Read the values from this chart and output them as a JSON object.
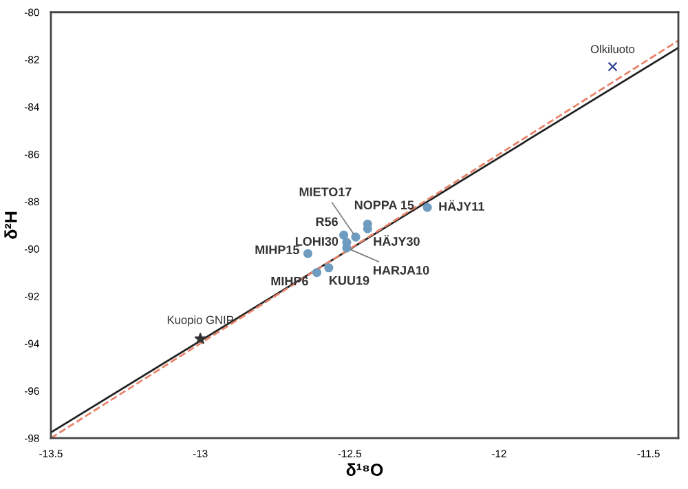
{
  "chart_data": {
    "type": "scatter",
    "xlabel": "δ¹⁸O",
    "ylabel": "δ²H",
    "xlim": [
      -13.5,
      -11.4
    ],
    "ylim": [
      -98,
      -80
    ],
    "xticks": [
      -13.5,
      -13,
      -12.5,
      -12,
      -11.5
    ],
    "yticks": [
      -98,
      -96,
      -94,
      -92,
      -90,
      -88,
      -86,
      -84,
      -82,
      -80
    ],
    "grid": false,
    "series": [
      {
        "type": "line",
        "color": "#222222",
        "line_style": "solid",
        "marker": "none",
        "x": [
          -13.5,
          -11.4
        ],
        "values": [
          -97.76,
          -81.5
        ]
      },
      {
        "type": "line",
        "color": "#e8836a",
        "line_style": "dashed",
        "marker": "none",
        "x": [
          -13.5,
          -11.4
        ],
        "values": [
          -98.0,
          -81.2
        ]
      },
      {
        "color": "#6e9cc0",
        "marker": "circle",
        "x": [
          -12.24,
          -12.44,
          -12.44,
          -12.48,
          -12.52,
          -12.51,
          -12.51,
          -12.64,
          -12.61,
          -12.57
        ],
        "values": [
          -88.25,
          -88.95,
          -89.15,
          -89.5,
          -89.42,
          -89.73,
          -89.96,
          -90.2,
          -91.0,
          -90.8
        ]
      },
      {
        "color": "#2e3f8f",
        "marker": "cross",
        "x": [
          -11.62
        ],
        "values": [
          -82.3
        ]
      },
      {
        "color": "#333333",
        "marker": "star",
        "x": [
          -13.0
        ],
        "values": [
          -93.8
        ]
      }
    ],
    "annotations": [
      {
        "text": "Olkiluoto",
        "x": -11.62,
        "y": -82.3
      },
      {
        "text": "Kuopio GNIP",
        "x": -13.0,
        "y": -93.8
      },
      {
        "text": "HÄJY11",
        "x": -12.24,
        "y": -88.25
      },
      {
        "text": "NOPPA 15",
        "x": -12.44,
        "y": -88.95
      },
      {
        "text": "HÄJY30",
        "x": -12.44,
        "y": -89.15
      },
      {
        "text": "MIETO17",
        "x": -12.48,
        "y": -89.5
      },
      {
        "text": "R56",
        "x": -12.52,
        "y": -89.42
      },
      {
        "text": "LOHI30",
        "x": -12.51,
        "y": -89.73
      },
      {
        "text": "HARJA10",
        "x": -12.51,
        "y": -89.96
      },
      {
        "text": "MIHP15",
        "x": -12.64,
        "y": -90.2
      },
      {
        "text": "MIHP6",
        "x": -12.61,
        "y": -91.0
      },
      {
        "text": "KUU19",
        "x": -12.57,
        "y": -90.8
      }
    ]
  }
}
